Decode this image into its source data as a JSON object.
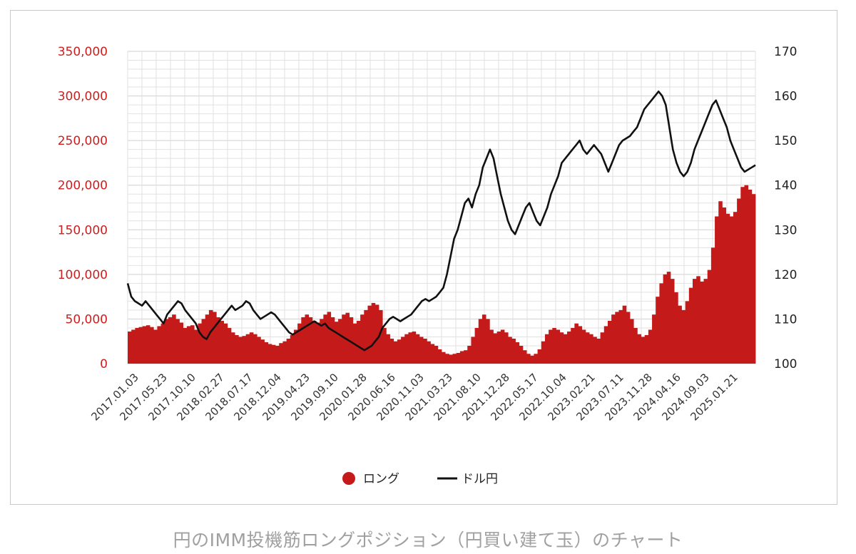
{
  "caption": "円のIMM投機筋ロングポジション（円買い建て玉）のチャート",
  "legend": {
    "bar_label": "ロング",
    "line_label": "ドル円",
    "bar_icon": "circle",
    "line_icon": "line"
  },
  "colors": {
    "bar": "#c41a1a",
    "line": "#111111",
    "left_axis_text": "#cc1f1f",
    "grid": "#d9d9d9"
  },
  "chart_data": {
    "type": "bar+line",
    "x_tick_labels": [
      "2017.01.03",
      "2017.05.23",
      "2017.10.10",
      "2018.02.27",
      "2018.07.17",
      "2018.12.04",
      "2019.04.23",
      "2019.09.10",
      "2020.01.28",
      "2020.06.16",
      "2020.11.03",
      "2021.03.23",
      "2021.08.10",
      "2021.12.28",
      "2022.05.17",
      "2022.10.04",
      "2023.02.21",
      "2023.07.11",
      "2023.11.28",
      "2024.04.16",
      "2024.09.03",
      "2025.01.21"
    ],
    "y_left": {
      "min": 0,
      "max": 350000,
      "ticks": [
        "0",
        "50,000",
        "100,000",
        "150,000",
        "200,000",
        "250,000",
        "300,000",
        "350,000"
      ]
    },
    "y_right": {
      "min": 100,
      "max": 170,
      "ticks": [
        "100",
        "110",
        "120",
        "130",
        "140",
        "150",
        "160",
        "170"
      ]
    },
    "grid": true,
    "legend_position": "bottom",
    "series": [
      {
        "name": "ロング",
        "type": "bar",
        "axis": "left",
        "values": [
          36000,
          38000,
          40000,
          41000,
          42000,
          43000,
          41000,
          38000,
          42000,
          45000,
          50000,
          52000,
          55000,
          50000,
          46000,
          40000,
          42000,
          43000,
          38000,
          45000,
          50000,
          55000,
          60000,
          58000,
          52000,
          48000,
          45000,
          40000,
          35000,
          32000,
          30000,
          31000,
          33000,
          35000,
          33000,
          30000,
          27000,
          24000,
          22000,
          21000,
          20000,
          23000,
          25000,
          28000,
          32000,
          38000,
          45000,
          52000,
          55000,
          52000,
          48000,
          46000,
          50000,
          55000,
          58000,
          52000,
          47000,
          50000,
          55000,
          57000,
          52000,
          45000,
          48000,
          55000,
          60000,
          65000,
          68000,
          66000,
          60000,
          40000,
          33000,
          28000,
          25000,
          27000,
          30000,
          33000,
          35000,
          36000,
          33000,
          30000,
          28000,
          25000,
          22000,
          20000,
          16000,
          13000,
          11000,
          10000,
          11000,
          12000,
          14000,
          15000,
          20000,
          30000,
          40000,
          50000,
          55000,
          50000,
          38000,
          34000,
          36000,
          38000,
          35000,
          30000,
          28000,
          24000,
          20000,
          15000,
          11000,
          9000,
          11000,
          16000,
          25000,
          33000,
          38000,
          40000,
          38000,
          35000,
          33000,
          36000,
          40000,
          45000,
          42000,
          38000,
          35000,
          33000,
          30000,
          28000,
          35000,
          42000,
          48000,
          55000,
          58000,
          60000,
          65000,
          58000,
          50000,
          40000,
          33000,
          30000,
          32000,
          38000,
          55000,
          75000,
          90000,
          100000,
          103000,
          95000,
          80000,
          65000,
          60000,
          70000,
          85000,
          95000,
          98000,
          92000,
          95000,
          105000,
          130000,
          165000,
          182000,
          175000,
          168000,
          165000,
          170000,
          185000,
          198000,
          200000,
          195000,
          190000
        ]
      },
      {
        "name": "ドル円",
        "type": "line",
        "axis": "right",
        "values": [
          118,
          115,
          114,
          113.5,
          113,
          114,
          113,
          112,
          111,
          110,
          109,
          111,
          112,
          113,
          114,
          113.5,
          112,
          111,
          110,
          109,
          107,
          106,
          105.5,
          107,
          108,
          109,
          110,
          111,
          112,
          113,
          112,
          112.5,
          113,
          114,
          113.5,
          112,
          111,
          110,
          110.5,
          111,
          111.5,
          111,
          110,
          109,
          108,
          107,
          106.5,
          107,
          107.5,
          108,
          108.5,
          109,
          109.5,
          109,
          108.5,
          109,
          108,
          107.5,
          107,
          106.5,
          106,
          105.5,
          105,
          104.5,
          104,
          103.5,
          103,
          103.5,
          104,
          105,
          106,
          108,
          109,
          110,
          110.5,
          110,
          109.5,
          110,
          110.5,
          111,
          112,
          113,
          114,
          114.5,
          114,
          114.5,
          115,
          116,
          117,
          120,
          124,
          128,
          130,
          133,
          136,
          137,
          135,
          138,
          140,
          144,
          146,
          148,
          146,
          142,
          138,
          135,
          132,
          130,
          129,
          131,
          133,
          135,
          136,
          134,
          132,
          131,
          133,
          135,
          138,
          140,
          142,
          145,
          146,
          147,
          148,
          149,
          150,
          148,
          147,
          148,
          149,
          148,
          147,
          145,
          143,
          145,
          147,
          149,
          150,
          150.5,
          151,
          152,
          153,
          155,
          157,
          158,
          159,
          160,
          161,
          160,
          158,
          153,
          148,
          145,
          143,
          142,
          143,
          145,
          148,
          150,
          152,
          154,
          156,
          158,
          159,
          157,
          155,
          153,
          150,
          148,
          146,
          144,
          143,
          143.5,
          144,
          144.5
        ]
      }
    ]
  }
}
